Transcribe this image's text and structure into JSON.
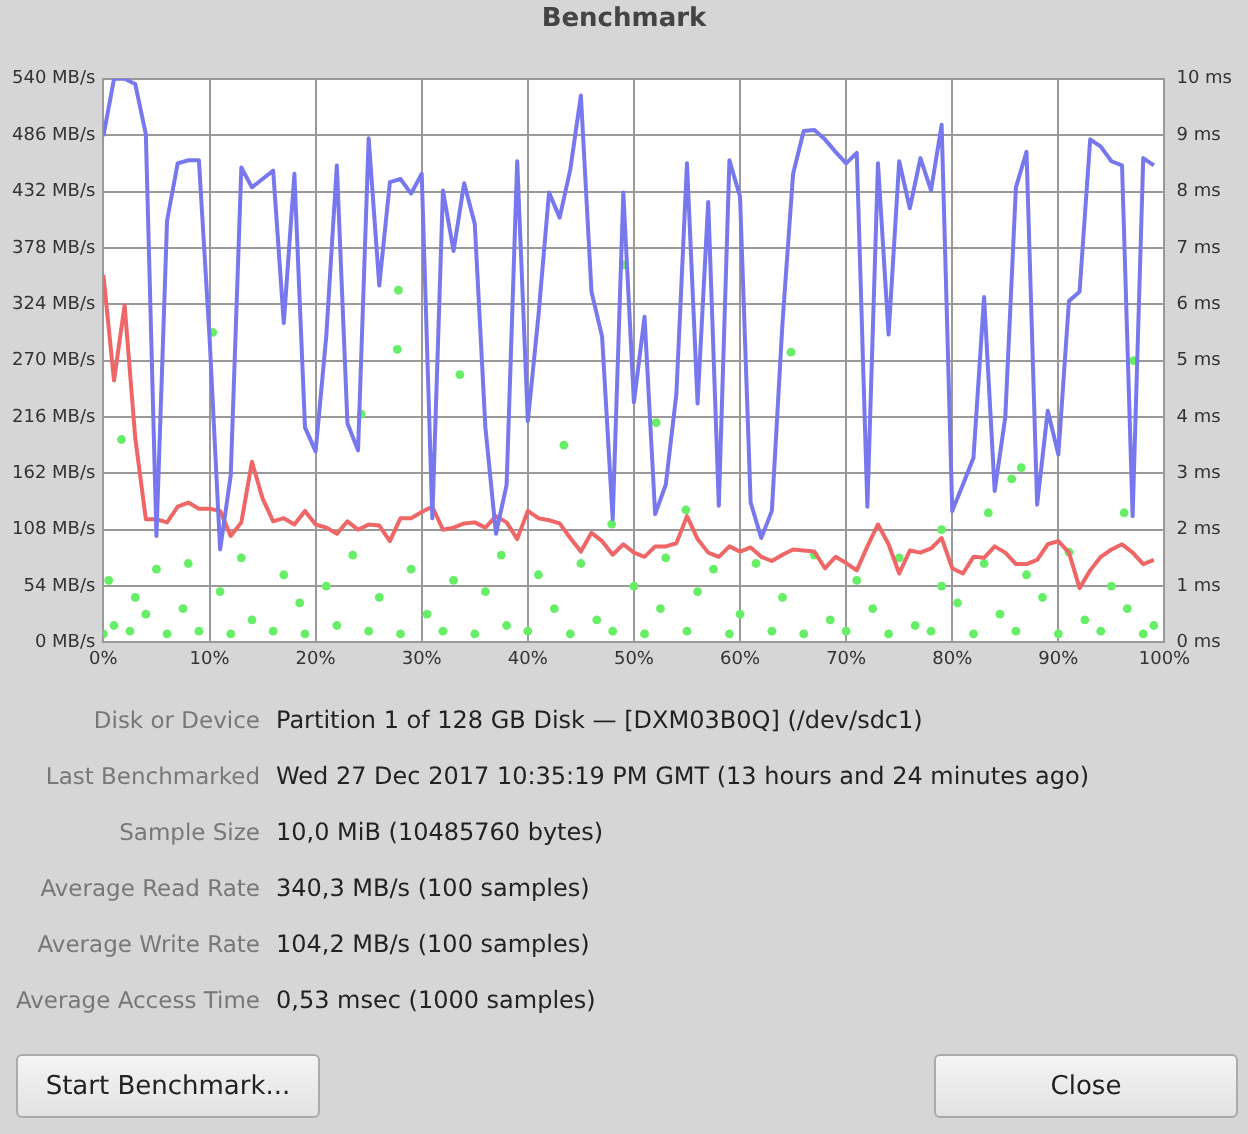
{
  "chart_data": {
    "type": "line",
    "title": "Benchmark",
    "xlim": [
      0,
      100
    ],
    "xticks": [
      {
        "value": 0,
        "label": "0%"
      },
      {
        "value": 10,
        "label": "10%"
      },
      {
        "value": 20,
        "label": "20%"
      },
      {
        "value": 30,
        "label": "30%"
      },
      {
        "value": 40,
        "label": "40%"
      },
      {
        "value": 50,
        "label": "50%"
      },
      {
        "value": 60,
        "label": "60%"
      },
      {
        "value": 70,
        "label": "70%"
      },
      {
        "value": 80,
        "label": "80%"
      },
      {
        "value": 90,
        "label": "90%"
      },
      {
        "value": 100,
        "label": "100%"
      }
    ],
    "ylim": [
      0,
      540
    ],
    "yticks": [
      {
        "value": 0,
        "label": "0 MB/s"
      },
      {
        "value": 54,
        "label": "54 MB/s"
      },
      {
        "value": 108,
        "label": "108 MB/s"
      },
      {
        "value": 162,
        "label": "162 MB/s"
      },
      {
        "value": 216,
        "label": "216 MB/s"
      },
      {
        "value": 270,
        "label": "270 MB/s"
      },
      {
        "value": 324,
        "label": "324 MB/s"
      },
      {
        "value": 378,
        "label": "378 MB/s"
      },
      {
        "value": 432,
        "label": "432 MB/s"
      },
      {
        "value": 486,
        "label": "486 MB/s"
      },
      {
        "value": 540,
        "label": "540 MB/s"
      }
    ],
    "y2lim": [
      0,
      10
    ],
    "y2ticks": [
      {
        "value": 0,
        "label": "0 ms"
      },
      {
        "value": 1,
        "label": "1 ms"
      },
      {
        "value": 2,
        "label": "2 ms"
      },
      {
        "value": 3,
        "label": "3 ms"
      },
      {
        "value": 4,
        "label": "4 ms"
      },
      {
        "value": 5,
        "label": "5 ms"
      },
      {
        "value": 6,
        "label": "6 ms"
      },
      {
        "value": 7,
        "label": "7 ms"
      },
      {
        "value": 8,
        "label": "8 ms"
      },
      {
        "value": 9,
        "label": "9 ms"
      },
      {
        "value": 10,
        "label": "10 ms"
      }
    ],
    "grid": true,
    "legend": false,
    "series": [
      {
        "type": "line",
        "marker": "none",
        "color": "#7777ee",
        "x": [
          0,
          1,
          2,
          3,
          4,
          5,
          6,
          7,
          8,
          9,
          10,
          11,
          12,
          13,
          14,
          15,
          16,
          17,
          18,
          19,
          20,
          21,
          22,
          23,
          24,
          25,
          26,
          27,
          28,
          29,
          30,
          31,
          32,
          33,
          34,
          35,
          36,
          37,
          38,
          39,
          40,
          41,
          42,
          43,
          44,
          45,
          46,
          47,
          48,
          49,
          50,
          51,
          52,
          53,
          54,
          55,
          56,
          57,
          58,
          59,
          60,
          61,
          62,
          63,
          64,
          65,
          66,
          67,
          68,
          69,
          70,
          71,
          72,
          73,
          74,
          75,
          76,
          77,
          78,
          79,
          80,
          81,
          82,
          83,
          84,
          85,
          86,
          87,
          88,
          89,
          90,
          91,
          92,
          93,
          94,
          95,
          96,
          97,
          98,
          99
        ],
        "values": [
          485,
          540,
          540,
          535,
          487,
          102,
          404,
          459,
          462,
          462,
          293,
          89,
          160,
          455,
          436,
          444,
          452,
          306,
          449,
          206,
          183,
          293,
          457,
          210,
          184,
          483,
          342,
          441,
          444,
          430,
          449,
          119,
          433,
          375,
          440,
          401,
          206,
          104,
          151,
          461,
          212,
          313,
          431,
          407,
          453,
          524,
          336,
          293,
          118,
          431,
          230,
          312,
          123,
          151,
          238,
          459,
          229,
          422,
          131,
          462,
          427,
          134,
          100,
          126,
          306,
          449,
          490,
          491,
          482,
          470,
          459,
          469,
          130,
          459,
          295,
          461,
          416,
          464,
          433,
          496,
          126,
          151,
          177,
          331,
          145,
          216,
          436,
          470,
          132,
          222,
          180,
          327,
          336,
          482,
          475,
          461,
          457,
          121,
          464,
          457
        ]
      },
      {
        "type": "line",
        "marker": "none",
        "color": "#ee6666",
        "x": [
          0,
          1,
          2,
          3,
          4,
          5,
          6,
          7,
          8,
          9,
          10,
          11,
          12,
          13,
          14,
          15,
          16,
          17,
          18,
          19,
          20,
          21,
          22,
          23,
          24,
          25,
          26,
          27,
          28,
          29,
          30,
          31,
          32,
          33,
          34,
          35,
          36,
          37,
          38,
          39,
          40,
          41,
          42,
          43,
          44,
          45,
          46,
          47,
          48,
          49,
          50,
          51,
          52,
          53,
          54,
          55,
          56,
          57,
          58,
          59,
          60,
          61,
          62,
          63,
          64,
          65,
          66,
          67,
          68,
          69,
          70,
          71,
          72,
          73,
          74,
          75,
          76,
          77,
          78,
          79,
          80,
          81,
          82,
          83,
          84,
          85,
          86,
          87,
          88,
          89,
          90,
          91,
          92,
          93,
          94,
          95,
          96,
          97,
          98,
          99
        ],
        "values": [
          352,
          251,
          323,
          196,
          118,
          118,
          115,
          130,
          134,
          128,
          128,
          126,
          102,
          115,
          173,
          138,
          116,
          119,
          113,
          126,
          113,
          110,
          104,
          116,
          108,
          113,
          112,
          97,
          119,
          119,
          125,
          130,
          108,
          110,
          114,
          115,
          110,
          121,
          115,
          99,
          126,
          119,
          117,
          114,
          100,
          87,
          105,
          97,
          84,
          94,
          86,
          82,
          92,
          92,
          95,
          121,
          99,
          86,
          82,
          92,
          87,
          91,
          82,
          78,
          84,
          89,
          88,
          87,
          71,
          82,
          76,
          69,
          92,
          113,
          94,
          66,
          88,
          86,
          90,
          100,
          71,
          66,
          82,
          81,
          92,
          86,
          75,
          75,
          79,
          94,
          97,
          86,
          52,
          69,
          82,
          89,
          94,
          86,
          75,
          79
        ]
      },
      {
        "type": "scatter",
        "marker": "circle",
        "axis": "y2",
        "color": "#66ee66",
        "x": [
          0,
          0.5,
          1,
          1.7,
          2.5,
          3,
          4,
          5,
          6,
          7.5,
          8,
          9,
          10.3,
          11,
          12,
          13,
          14,
          16,
          17,
          18.5,
          19,
          21,
          22,
          23.5,
          24.3,
          25,
          26,
          27.7,
          27.8,
          28,
          29,
          30.5,
          32,
          33,
          33.6,
          35,
          36,
          37.5,
          38,
          40,
          41,
          42.5,
          43.4,
          44,
          45,
          46.5,
          47.9,
          48,
          49.1,
          50,
          51,
          52.1,
          52.5,
          53,
          54.9,
          55,
          56,
          57.5,
          59,
          60,
          61.5,
          63,
          64,
          64.8,
          66,
          67,
          68.5,
          70,
          71,
          72.5,
          74,
          75,
          76.5,
          78,
          79,
          79,
          80.5,
          82,
          83,
          83.4,
          84.5,
          85.6,
          86,
          86.5,
          87,
          88.5,
          90,
          91,
          92.5,
          94,
          95,
          96.2,
          96.5,
          97.1,
          98,
          99
        ],
        "values": [
          0.15,
          1.1,
          0.3,
          3.6,
          0.2,
          0.8,
          0.5,
          1.3,
          0.15,
          0.6,
          1.4,
          0.2,
          5.5,
          0.9,
          0.15,
          1.5,
          0.4,
          0.2,
          1.2,
          0.7,
          0.15,
          1.0,
          0.3,
          1.55,
          4.05,
          0.2,
          0.8,
          5.2,
          6.25,
          0.15,
          1.3,
          0.5,
          0.2,
          1.1,
          4.75,
          0.15,
          0.9,
          1.55,
          0.3,
          0.2,
          1.2,
          0.6,
          3.5,
          0.15,
          1.4,
          0.4,
          2.1,
          0.2,
          6.7,
          1.0,
          0.15,
          3.9,
          0.6,
          1.5,
          2.35,
          0.2,
          0.9,
          1.3,
          0.15,
          0.5,
          1.4,
          0.2,
          0.8,
          5.15,
          0.15,
          1.55,
          0.4,
          0.2,
          1.1,
          0.6,
          0.15,
          1.5,
          0.3,
          0.2,
          1.0,
          2.0,
          0.7,
          0.15,
          1.4,
          2.3,
          0.5,
          2.9,
          0.2,
          3.1,
          1.2,
          0.8,
          0.15,
          1.6,
          0.4,
          0.2,
          1.0,
          2.3,
          0.6,
          5.0,
          0.15,
          0.3
        ]
      }
    ],
    "annotations": [
      "Disk or Device",
      "Partition 1 of 128 GB Disk — [DXM03B0Q] (/dev/sdc1)",
      "Last Benchmarked",
      "Wed 27 Dec 2017 10:35:19 PM GMT (13 hours and 24 minutes ago)",
      "Sample Size",
      "10,0 MiB (10485760 bytes)",
      "Average Read Rate",
      "340,3 MB/s (100 samples)",
      "Average Write Rate",
      "104,2 MB/s (100 samples)",
      "Average Access Time",
      "0,53 msec (1000 samples)",
      "Start Benchmark...",
      "Close"
    ]
  }
}
